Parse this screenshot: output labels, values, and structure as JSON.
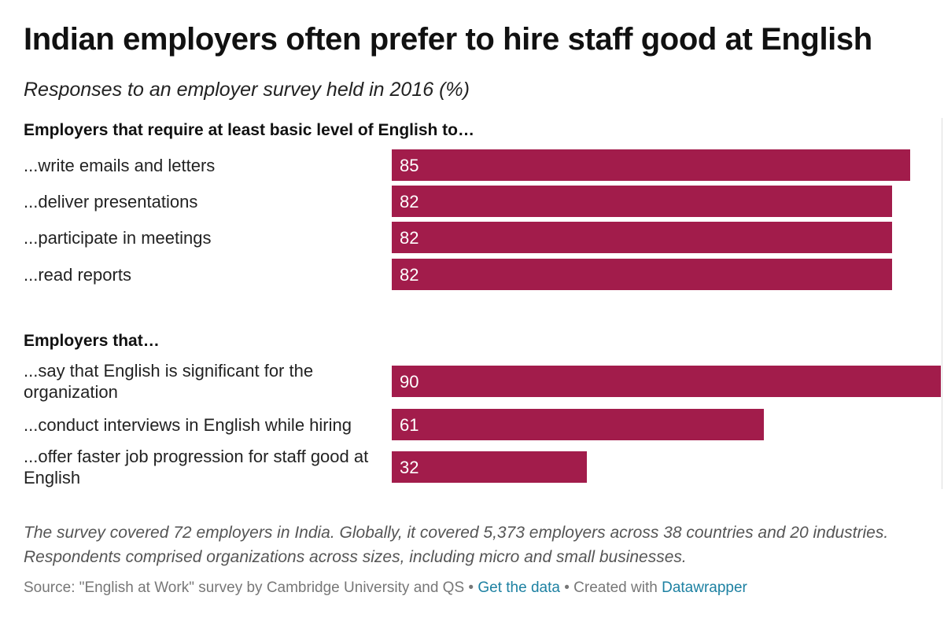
{
  "title": "Indian employers often prefer to hire staff good at English",
  "subtitle": "Responses to an employer survey held in 2016 (%)",
  "colors": {
    "bar": "#a21c4b",
    "value_text": "#ffffff",
    "link": "#1d81a2"
  },
  "chart_data": {
    "type": "bar",
    "orientation": "horizontal",
    "title": "Indian employers often prefer to hire staff good at English",
    "subtitle": "Responses to an employer survey held in 2016 (%)",
    "xlim": [
      0,
      90
    ],
    "groups": [
      {
        "heading": "Employers that require at least basic level of English to…",
        "items": [
          {
            "label": "...write emails and letters",
            "value": 85
          },
          {
            "label": "...deliver presentations",
            "value": 82
          },
          {
            "label": "...participate in meetings",
            "value": 82
          },
          {
            "label": "...read reports",
            "value": 82
          }
        ]
      },
      {
        "heading": "Employers that…",
        "items": [
          {
            "label": "...say that English is significant for the organization",
            "value": 90
          },
          {
            "label": "...conduct interviews in English while hiring",
            "value": 61
          },
          {
            "label": "...offer faster job progression for staff good at English",
            "value": 32
          }
        ]
      }
    ]
  },
  "notes": "The survey covered 72 employers in India. Globally, it covered 5,373 employers across 38 countries and 20 industries. Respondents comprised organizations across sizes, including micro and small businesses.",
  "footer": {
    "source": "Source: \"English at Work\" survey by Cambridge University and QS",
    "separator": "•",
    "get_data": "Get the data",
    "created_with": "Created with",
    "datawrapper": "Datawrapper"
  }
}
